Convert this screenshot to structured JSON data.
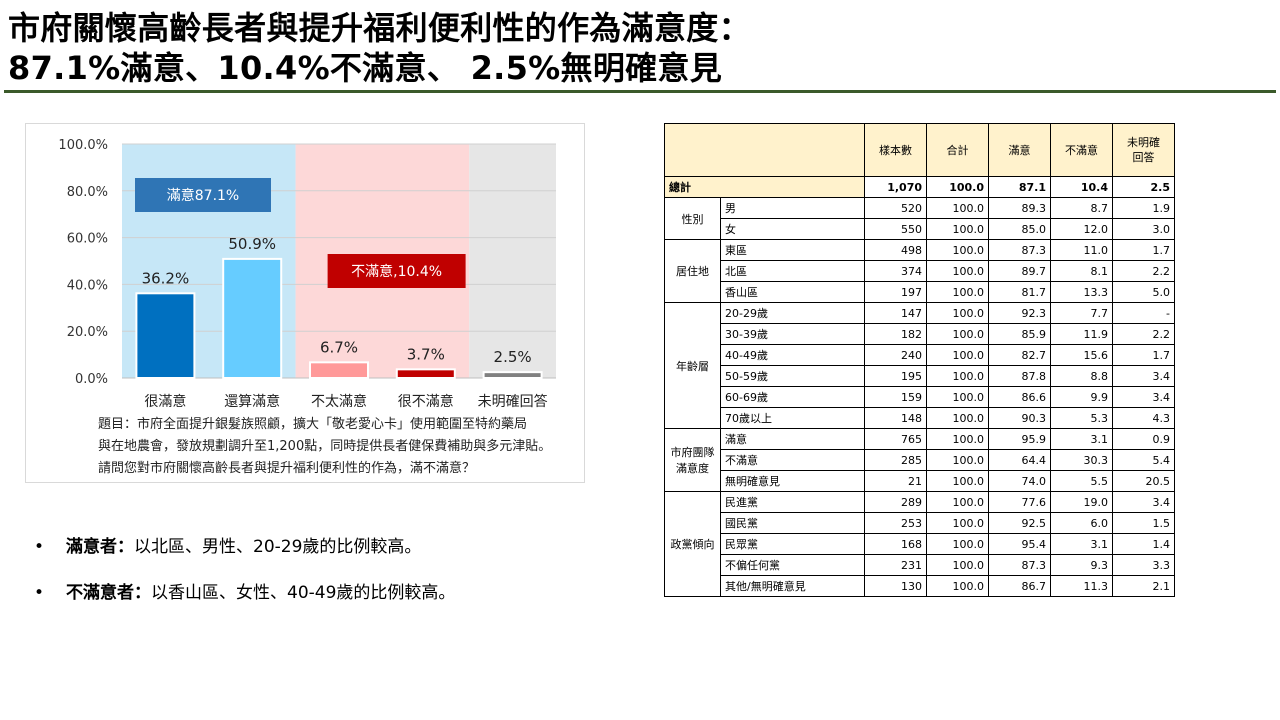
{
  "page": {
    "title_line1": "市府關懷高齡長者與提升福利便利性的作為滿意度：",
    "title_line2": "87.1%滿意、10.4%不滿意、 2.5%無明確意見"
  },
  "chart_data": {
    "type": "bar",
    "categories": [
      "很滿意",
      "還算滿意",
      "不太滿意",
      "很不滿意",
      "未明確回答"
    ],
    "values": [
      36.2,
      50.9,
      6.7,
      3.7,
      2.5
    ],
    "value_labels": [
      "36.2%",
      "50.9%",
      "6.7%",
      "3.7%",
      "2.5%"
    ],
    "y_ticks": [
      "0.0%",
      "20.0%",
      "40.0%",
      "60.0%",
      "80.0%",
      "100.0%"
    ],
    "ylim": [
      0,
      100
    ],
    "grid": true,
    "bar_colors": [
      "#0070c0",
      "#66ccff",
      "#ff9999",
      "#c00000",
      "#808080"
    ],
    "band_colors": [
      "#c6e7f7",
      "#fdd8d8",
      "#e6e6e6"
    ],
    "groups": [
      {
        "label": "滿意87.1%",
        "color": "#2f75b5"
      },
      {
        "label": "不滿意,10.4%",
        "color": "#c00000"
      }
    ],
    "note_lines": [
      "題目：市府全面提升銀髮族照顧，擴大「敬老愛心卡」使用範圍至特約藥局",
      "與在地農會，發放規劃調升至1,200點，同時提供長者健保費補助與多元津貼。",
      "請問您對市府關懷高齡長者與提升福利便利性的作為，滿不滿意？"
    ]
  },
  "bullets": [
    {
      "marker": "•",
      "label": "滿意者：",
      "text": "以北區、男性、20-29歲的比例較高。"
    },
    {
      "marker": "•",
      "label": "不滿意者：",
      "text": "以香山區、女性、40-49歲的比例較高。"
    }
  ],
  "table": {
    "headers": [
      "樣本數",
      "合計",
      "滿意",
      "不滿意",
      "未明確\n回答"
    ],
    "total": {
      "label": "總計",
      "values": [
        "1,070",
        "100.0",
        "87.1",
        "10.4",
        "2.5"
      ]
    },
    "groups": [
      {
        "name": "性別",
        "rows": [
          {
            "label": "男",
            "values": [
              "520",
              "100.0",
              "89.3",
              "8.7",
              "1.9"
            ]
          },
          {
            "label": "女",
            "values": [
              "550",
              "100.0",
              "85.0",
              "12.0",
              "3.0"
            ]
          }
        ]
      },
      {
        "name": "居住地",
        "rows": [
          {
            "label": "東區",
            "values": [
              "498",
              "100.0",
              "87.3",
              "11.0",
              "1.7"
            ]
          },
          {
            "label": "北區",
            "values": [
              "374",
              "100.0",
              "89.7",
              "8.1",
              "2.2"
            ]
          },
          {
            "label": "香山區",
            "values": [
              "197",
              "100.0",
              "81.7",
              "13.3",
              "5.0"
            ]
          }
        ]
      },
      {
        "name": "年齡層",
        "rows": [
          {
            "label": "20-29歲",
            "values": [
              "147",
              "100.0",
              "92.3",
              "7.7",
              "-"
            ]
          },
          {
            "label": "30-39歲",
            "values": [
              "182",
              "100.0",
              "85.9",
              "11.9",
              "2.2"
            ]
          },
          {
            "label": "40-49歲",
            "values": [
              "240",
              "100.0",
              "82.7",
              "15.6",
              "1.7"
            ]
          },
          {
            "label": "50-59歲",
            "values": [
              "195",
              "100.0",
              "87.8",
              "8.8",
              "3.4"
            ]
          },
          {
            "label": "60-69歲",
            "values": [
              "159",
              "100.0",
              "86.6",
              "9.9",
              "3.4"
            ]
          },
          {
            "label": "70歲以上",
            "values": [
              "148",
              "100.0",
              "90.3",
              "5.3",
              "4.3"
            ]
          }
        ]
      },
      {
        "name": "市府團隊\n滿意度",
        "rows": [
          {
            "label": "滿意",
            "values": [
              "765",
              "100.0",
              "95.9",
              "3.1",
              "0.9"
            ]
          },
          {
            "label": "不滿意",
            "values": [
              "285",
              "100.0",
              "64.4",
              "30.3",
              "5.4"
            ]
          },
          {
            "label": "無明確意見",
            "values": [
              "21",
              "100.0",
              "74.0",
              "5.5",
              "20.5"
            ]
          }
        ]
      },
      {
        "name": "政黨傾向",
        "rows": [
          {
            "label": "民進黨",
            "values": [
              "289",
              "100.0",
              "77.6",
              "19.0",
              "3.4"
            ]
          },
          {
            "label": "國民黨",
            "values": [
              "253",
              "100.0",
              "92.5",
              "6.0",
              "1.5"
            ]
          },
          {
            "label": "民眾黨",
            "values": [
              "168",
              "100.0",
              "95.4",
              "3.1",
              "1.4"
            ]
          },
          {
            "label": "不偏任何黨",
            "values": [
              "231",
              "100.0",
              "87.3",
              "9.3",
              "3.3"
            ]
          },
          {
            "label": "其他/無明確意見",
            "values": [
              "130",
              "100.0",
              "86.7",
              "11.3",
              "2.1"
            ]
          }
        ]
      }
    ]
  }
}
